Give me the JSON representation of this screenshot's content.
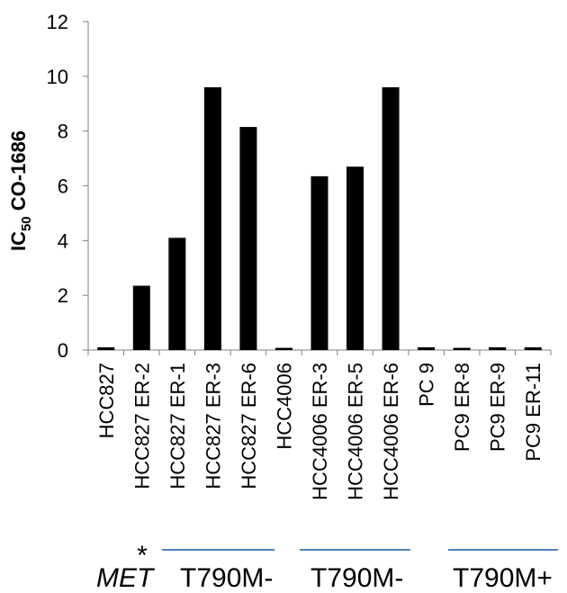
{
  "chart_data": {
    "type": "bar",
    "ylabel_main": "IC",
    "ylabel_sub": "50",
    "ylabel_rest": " CO-1686",
    "ylim": [
      0,
      12
    ],
    "yticks": [
      0,
      2,
      4,
      6,
      8,
      10,
      12
    ],
    "grid": false,
    "categories": [
      "HCC827",
      "HCC827 ER-2",
      "HCC827 ER-1",
      "HCC827 ER-3",
      "HCC827 ER-6",
      "HCC4006",
      "HCC4006 ER-3",
      "HCC4006 ER-5",
      "HCC4006 ER-6",
      "PC 9",
      "PC9 ER-8",
      "PC9 ER-9",
      "PC9 ER-11"
    ],
    "values": [
      0.1,
      2.35,
      4.1,
      9.6,
      8.15,
      0.08,
      6.35,
      6.7,
      9.6,
      0.1,
      0.08,
      0.1,
      0.1
    ],
    "bar_color": "#000000"
  },
  "annotations": {
    "asterisk": "*",
    "asterisk_color": "#2a4d8f",
    "line_color": "#4f81bd",
    "met": "MET",
    "group1": "T790M-",
    "group2": "T790M-",
    "group3": "T790M+"
  }
}
